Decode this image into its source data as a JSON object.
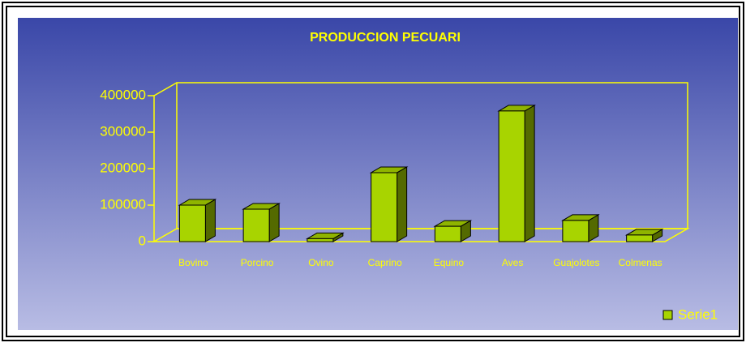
{
  "chart_data": {
    "type": "bar",
    "title": "PRODUCCION PECUARI",
    "categories": [
      "Bovino",
      "Porcino",
      "Ovino",
      "Caprino",
      "Equino",
      "Aves",
      "Guajolotes",
      "Colmenas"
    ],
    "series": [
      {
        "name": "Serie1",
        "color": "#a8d400",
        "values": [
          100000,
          89000,
          8000,
          189000,
          42000,
          358000,
          58000,
          18000
        ]
      }
    ],
    "ylim": [
      0,
      400000
    ],
    "yticks": [
      0,
      100000,
      200000,
      300000,
      400000
    ],
    "legend": "bottom-right"
  }
}
